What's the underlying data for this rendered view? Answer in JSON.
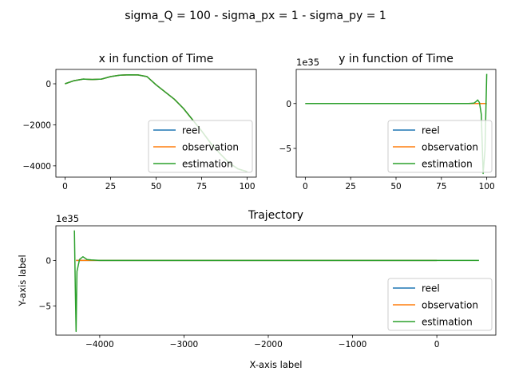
{
  "figure": {
    "suptitle": "sigma_Q = 100 - sigma_px = 1 - sigma_py = 1"
  },
  "colors": {
    "reel": "#1f77b4",
    "observation": "#ff7f0e",
    "estimation": "#2ca02c"
  },
  "legend": {
    "entries": [
      "reel",
      "observation",
      "estimation"
    ],
    "placement": "lower right"
  },
  "chart_data": [
    {
      "type": "line",
      "title": "x in function of Time",
      "xlabel": "",
      "ylabel": "",
      "xlim": [
        -5,
        105
      ],
      "ylim": [
        -4550,
        700
      ],
      "xticks": [
        0,
        25,
        50,
        75,
        100
      ],
      "yticks": [
        0,
        -2000,
        -4000
      ],
      "offset_text": "",
      "legend": "lower right",
      "series": [
        {
          "name": "reel",
          "x": [
            0,
            5,
            10,
            15,
            20,
            25,
            30,
            35,
            40,
            45,
            50,
            55,
            60,
            65,
            70,
            75,
            80,
            85,
            90,
            95,
            100
          ],
          "y": [
            0,
            150,
            230,
            210,
            230,
            350,
            420,
            440,
            430,
            350,
            -50,
            -400,
            -750,
            -1200,
            -1750,
            -2300,
            -2900,
            -3400,
            -3850,
            -4150,
            -4280
          ]
        },
        {
          "name": "observation",
          "x": [
            0,
            5,
            10,
            15,
            20,
            25,
            30,
            35,
            40,
            45,
            50,
            55,
            60,
            65,
            70,
            75,
            80,
            85,
            90,
            95,
            100
          ],
          "y": [
            0,
            150,
            230,
            210,
            230,
            350,
            420,
            440,
            430,
            350,
            -50,
            -400,
            -750,
            -1200,
            -1750,
            -2300,
            -2900,
            -3400,
            -3850,
            -4150,
            -4280
          ]
        },
        {
          "name": "estimation",
          "x": [
            0,
            5,
            10,
            15,
            20,
            25,
            30,
            35,
            40,
            45,
            50,
            55,
            60,
            65,
            70,
            75,
            80,
            85,
            90,
            95,
            100
          ],
          "y": [
            0,
            150,
            230,
            210,
            230,
            350,
            420,
            440,
            430,
            350,
            -50,
            -400,
            -750,
            -1200,
            -1750,
            -2300,
            -2900,
            -3400,
            -3850,
            -4150,
            -4280
          ]
        }
      ]
    },
    {
      "type": "line",
      "title": "y in function of Time",
      "xlabel": "",
      "ylabel": "",
      "xlim": [
        -5,
        105
      ],
      "ylim": [
        -8.2,
        3.8
      ],
      "xticks": [
        0,
        25,
        50,
        75,
        100
      ],
      "yticks": [
        0,
        -5
      ],
      "offset_text": "1e35",
      "legend": "lower right",
      "series": [
        {
          "name": "reel",
          "x": [
            0,
            25,
            50,
            75,
            90,
            95,
            98,
            100
          ],
          "y": [
            0,
            0,
            0,
            0,
            0,
            0,
            0,
            0
          ]
        },
        {
          "name": "observation",
          "x": [
            0,
            25,
            50,
            75,
            90,
            95,
            98,
            100
          ],
          "y": [
            0,
            0,
            0,
            0,
            0,
            0,
            0,
            0
          ]
        },
        {
          "name": "estimation",
          "x": [
            0,
            25,
            50,
            75,
            90,
            93,
            94,
            95,
            96,
            97,
            98,
            99,
            100
          ],
          "y": [
            0,
            0,
            0,
            0,
            0,
            0.05,
            0.2,
            0.4,
            0.1,
            -1.2,
            -7.8,
            -5.2,
            3.3
          ]
        }
      ]
    },
    {
      "type": "line",
      "title": "Trajectory",
      "xlabel": "X-axis label",
      "ylabel": "Y-axis label",
      "xlim": [
        -4520,
        700
      ],
      "ylim": [
        -8.2,
        3.8
      ],
      "xticks": [
        -4000,
        -3000,
        -2000,
        -1000,
        0
      ],
      "yticks": [
        0,
        -5
      ],
      "offset_text": "1e35",
      "legend": "lower right",
      "series": [
        {
          "name": "reel",
          "x": [
            0,
            -400,
            -1200,
            -2300,
            -3400,
            -4150,
            -4280
          ],
          "y": [
            0,
            0,
            0,
            0,
            0,
            0,
            0
          ]
        },
        {
          "name": "observation",
          "x": [
            0,
            -400,
            -1200,
            -2300,
            -3400,
            -4150,
            -4280
          ],
          "y": [
            0,
            0,
            0,
            0,
            0,
            0,
            0
          ]
        },
        {
          "name": "estimation",
          "x": [
            500,
            0,
            -1000,
            -2000,
            -3000,
            -4000,
            -4100,
            -4150,
            -4200,
            -4240,
            -4270,
            -4280,
            -4290,
            -4300
          ],
          "y": [
            0,
            0,
            0,
            0,
            0,
            0,
            0.05,
            0.1,
            0.4,
            0.1,
            -1.2,
            -7.8,
            -3.0,
            3.3
          ]
        }
      ]
    }
  ]
}
